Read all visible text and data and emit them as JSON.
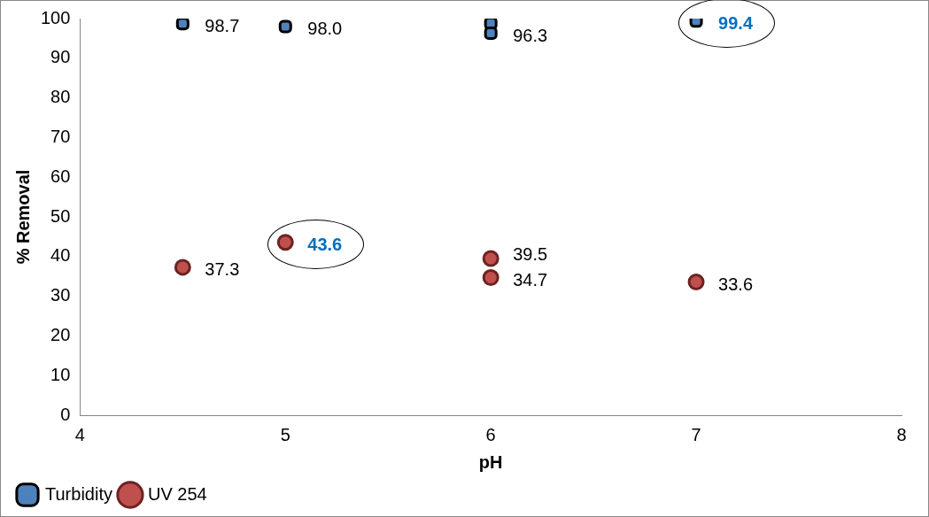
{
  "chart_data": {
    "type": "scatter",
    "xlabel": "pH",
    "ylabel": "% Removal",
    "xlim": [
      4,
      8
    ],
    "xticks": [
      4,
      5,
      6,
      7,
      8
    ],
    "ylim": [
      0,
      100
    ],
    "yticks": [
      0,
      10,
      20,
      30,
      40,
      50,
      60,
      70,
      80,
      90,
      100
    ],
    "grid": false,
    "legend": "bottom left",
    "series": [
      {
        "name": "Turbidity",
        "color": "#000000",
        "marker": "square",
        "x": [
          4.5,
          5,
          6,
          6,
          7
        ],
        "values": [
          98.7,
          98.0,
          98.8,
          96.3,
          99.4
        ],
        "value_labels": [
          "98.7",
          "98.0",
          null,
          "96.3",
          "99.4"
        ]
      },
      {
        "name": "UV 254",
        "color": "#c0504d",
        "marker": "circle",
        "x": [
          4.5,
          5,
          6,
          6,
          7
        ],
        "values": [
          37.3,
          43.6,
          39.5,
          34.7,
          33.6
        ],
        "value_labels": [
          "37.3",
          "43.6",
          "39.5",
          "34.7",
          "33.6"
        ]
      }
    ]
  }
}
